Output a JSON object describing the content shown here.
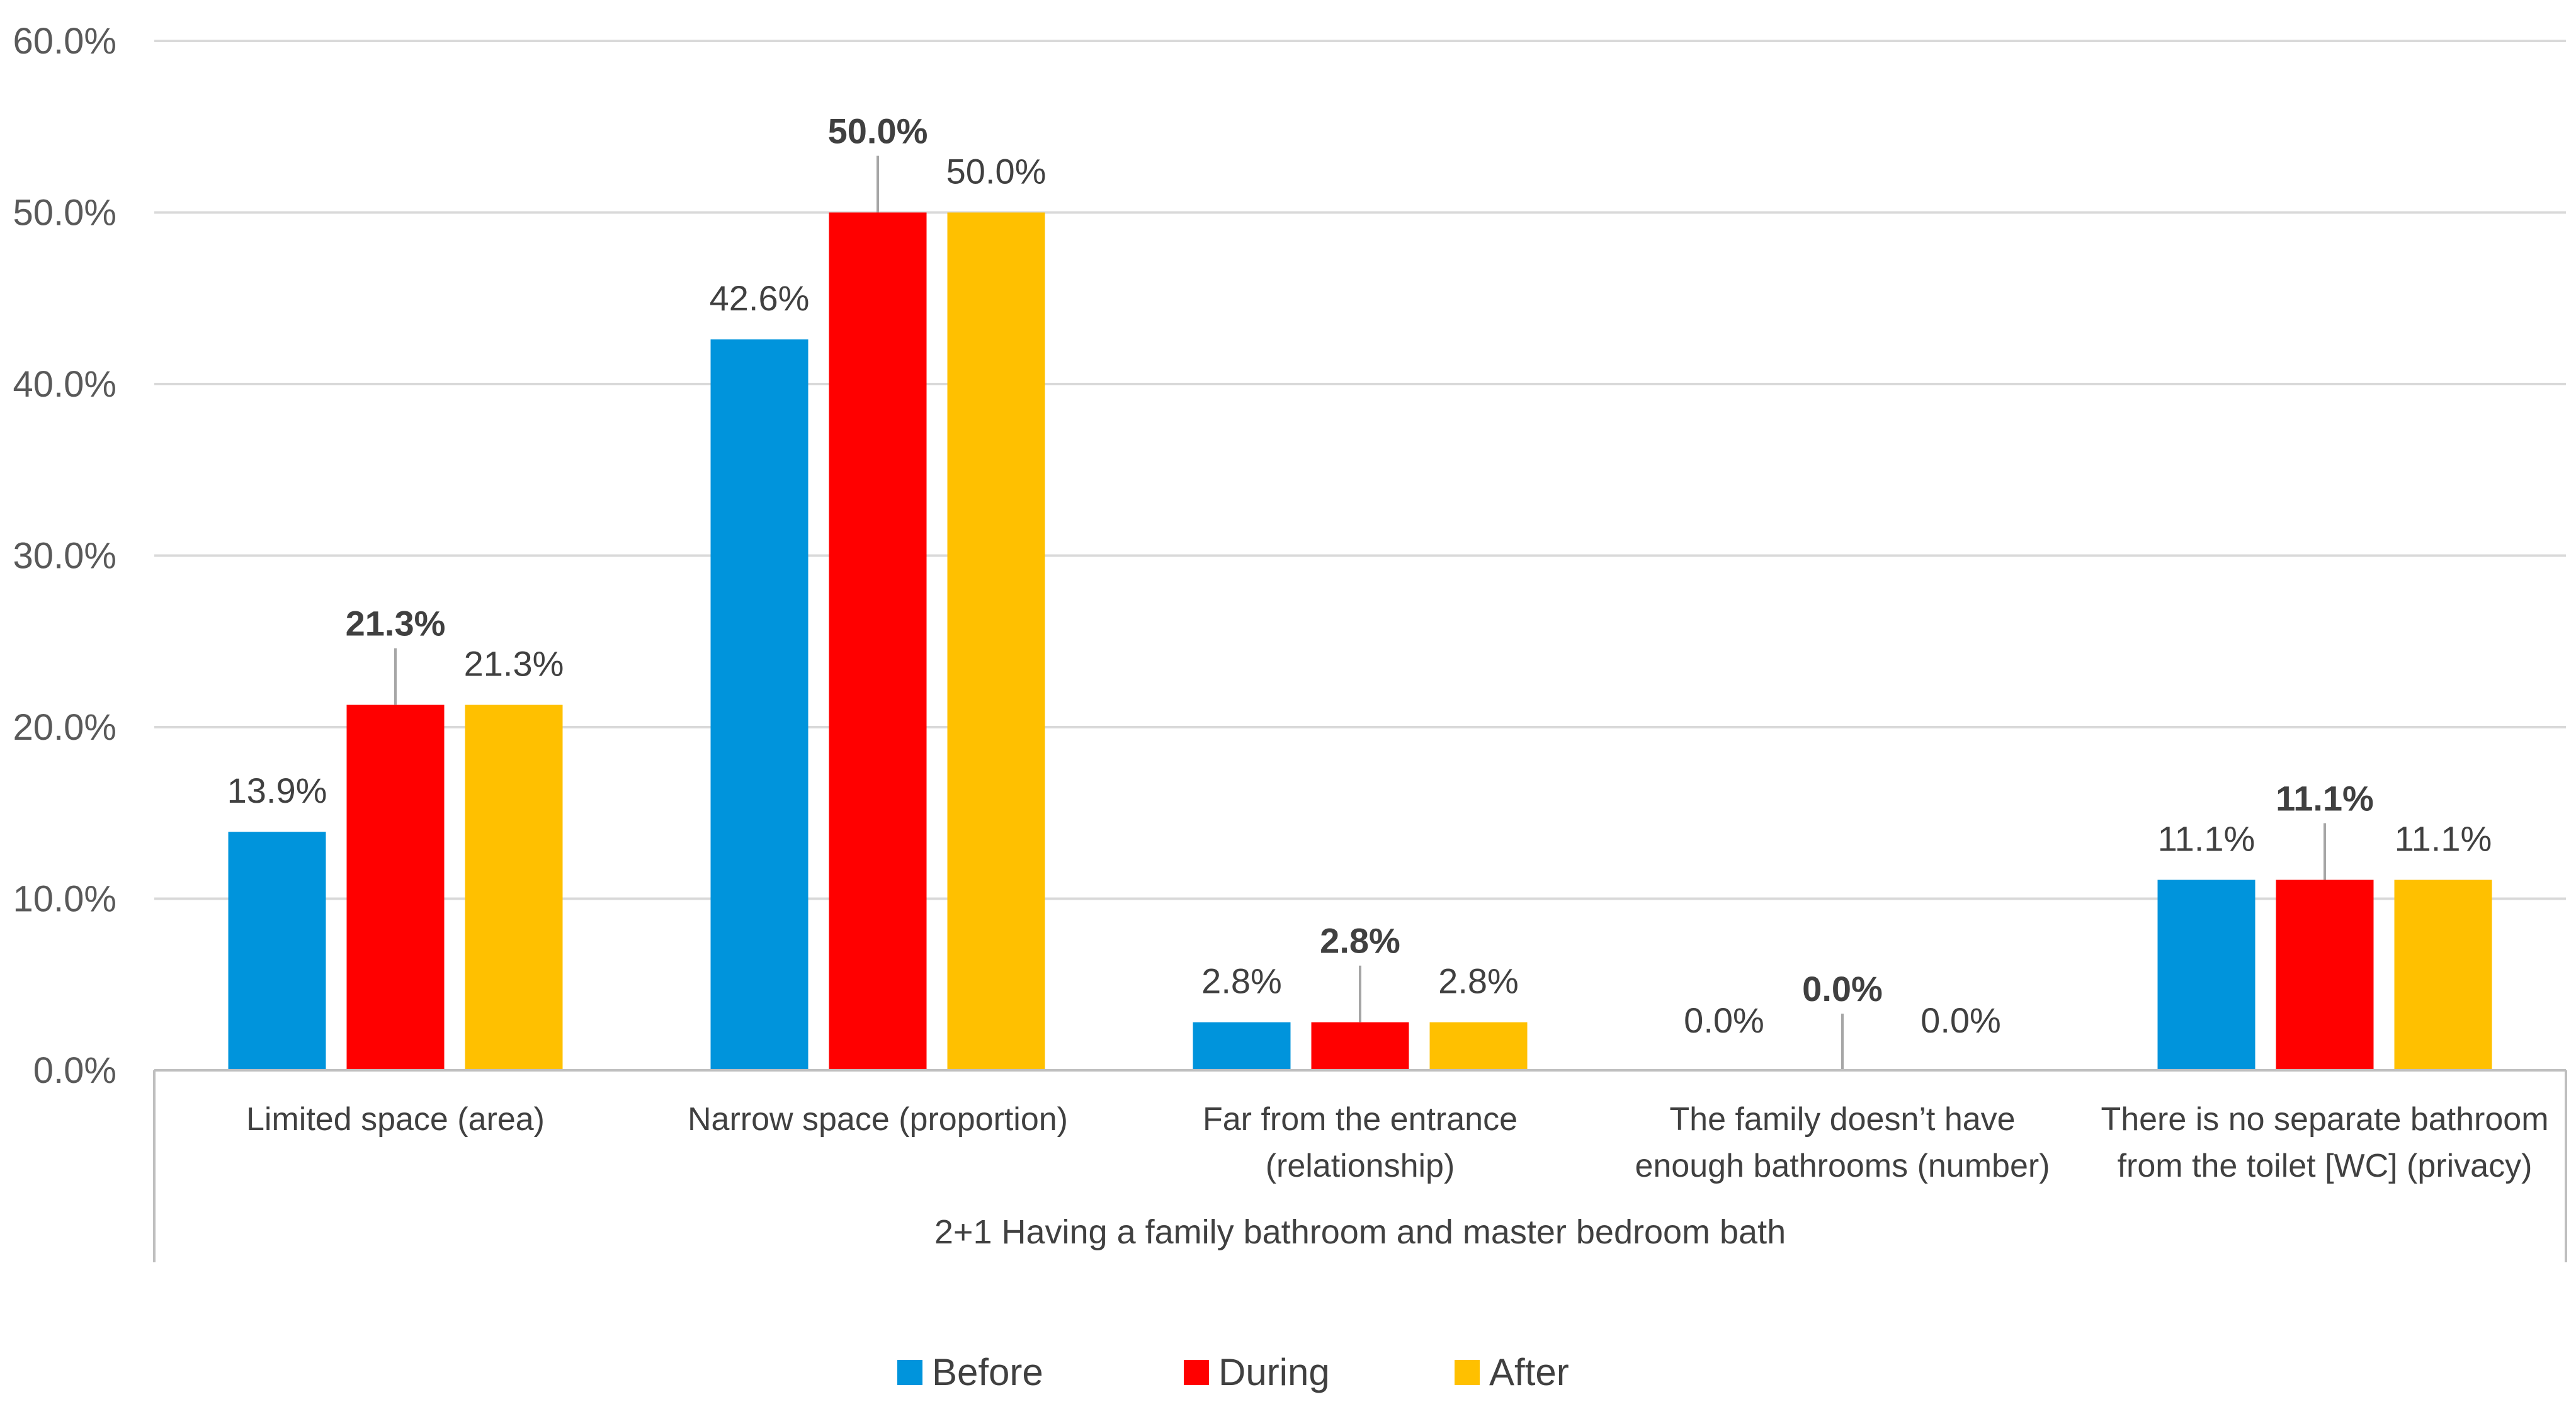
{
  "chart_data": {
    "type": "bar",
    "title": "",
    "xlabel": "",
    "ylabel": "",
    "ylim": [
      0,
      60
    ],
    "yticks": [
      "0.0%",
      "10.0%",
      "20.0%",
      "30.0%",
      "40.0%",
      "50.0%",
      "60.0%"
    ],
    "grid": true,
    "group_label": "2+1 Having a family bathroom and master bedroom bath",
    "categories": [
      [
        "Limited space (area)"
      ],
      [
        "Narrow space (proportion)"
      ],
      [
        "Far from the entrance",
        "(relationship)"
      ],
      [
        "The family doesn’t have",
        "enough bathrooms (number)"
      ],
      [
        "There is no separate bathroom",
        "from the toilet [WC] (privacy)"
      ]
    ],
    "series": [
      {
        "name": "Before",
        "color": "#0094DC",
        "values": [
          13.9,
          42.6,
          2.8,
          0.0,
          11.1
        ],
        "labels": [
          "13.9%",
          "42.6%",
          "2.8%",
          "0.0%",
          "11.1%"
        ]
      },
      {
        "name": "During",
        "color": "#FF0000",
        "values": [
          21.3,
          50.0,
          2.8,
          0.0,
          11.1
        ],
        "labels": [
          "21.3%",
          "50.0%",
          "2.8%",
          "0.0%",
          "11.1%"
        ]
      },
      {
        "name": "After",
        "color": "#FFC000",
        "values": [
          21.3,
          50.0,
          2.8,
          0.0,
          11.1
        ],
        "labels": [
          "21.3%",
          "50.0%",
          "2.8%",
          "0.0%",
          "11.1%"
        ]
      }
    ],
    "legend_position": "bottom"
  }
}
